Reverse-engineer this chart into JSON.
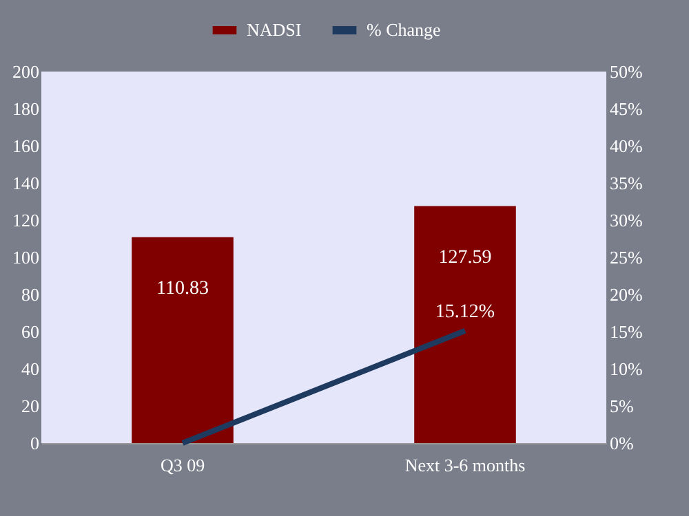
{
  "chart_data": {
    "type": "bar",
    "categories": [
      "Q3 09",
      "Next 3-6 months"
    ],
    "series": [
      {
        "name": "NADSI",
        "color": "#800000",
        "values": [
          110.83,
          127.59
        ],
        "data_labels": true
      },
      {
        "name": "% Change",
        "type": "line",
        "axis": "y2",
        "color": "#1f3a5f",
        "values": [
          0,
          15.12
        ],
        "value_labels": [
          null,
          "15.12%"
        ]
      }
    ],
    "ylim": [
      0,
      200
    ],
    "yticks": [
      0,
      20,
      40,
      60,
      80,
      100,
      120,
      140,
      160,
      180,
      200
    ],
    "y2lim": [
      0,
      50
    ],
    "y2ticks": [
      {
        "value": 0,
        "label": "0%"
      },
      {
        "value": 5,
        "label": "5%"
      },
      {
        "value": 10,
        "label": "10%"
      },
      {
        "value": 15,
        "label": "15%"
      },
      {
        "value": 20,
        "label": "20%"
      },
      {
        "value": 25,
        "label": "25%"
      },
      {
        "value": 30,
        "label": "30%"
      },
      {
        "value": 35,
        "label": "35%"
      },
      {
        "value": 40,
        "label": "40%"
      },
      {
        "value": 45,
        "label": "45%"
      },
      {
        "value": 50,
        "label": "50%"
      }
    ],
    "legend": "top",
    "grid": false,
    "marker": "none",
    "line_style": "solid"
  }
}
